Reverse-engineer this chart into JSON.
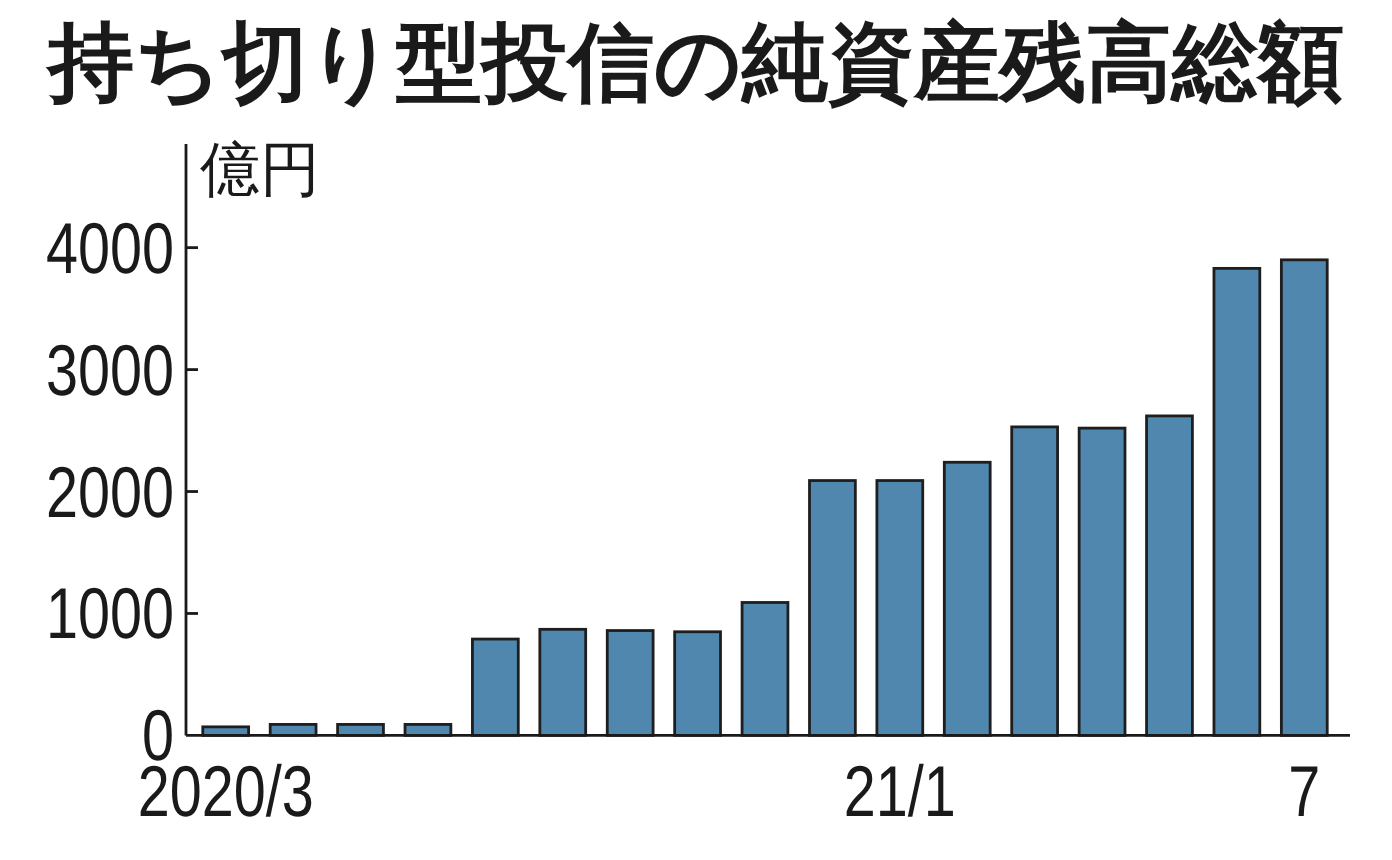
{
  "chart_data": {
    "type": "bar",
    "title": "持ち切り型投信の純資産残高総額",
    "ylabel": "億円",
    "categories": [
      "2020/3",
      null,
      null,
      null,
      null,
      null,
      null,
      null,
      null,
      null,
      "21/1",
      null,
      null,
      null,
      null,
      null,
      "7"
    ],
    "values": [
      70,
      90,
      90,
      90,
      790,
      870,
      860,
      850,
      1090,
      2090,
      2090,
      2240,
      2530,
      2520,
      2620,
      3830,
      3900
    ],
    "color": "#4f87ae",
    "ylim": [
      0,
      4850
    ],
    "yticks": [
      0,
      1000,
      2000,
      3000,
      4000
    ]
  }
}
